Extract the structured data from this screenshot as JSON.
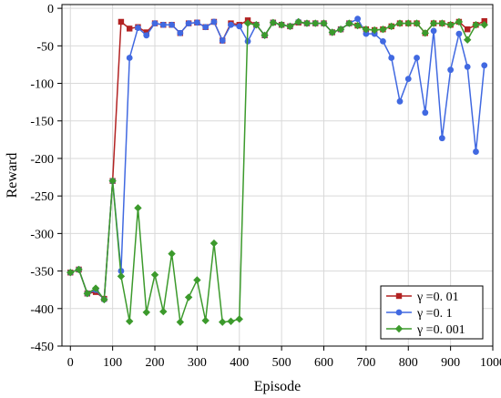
{
  "chart_data": {
    "type": "line",
    "title": "",
    "xlabel": "Episode",
    "ylabel": "Reward",
    "xlim": [
      -20,
      1000
    ],
    "ylim": [
      -450,
      5
    ],
    "xticks": [
      0,
      100,
      200,
      300,
      400,
      500,
      600,
      700,
      800,
      900,
      1000
    ],
    "yticks": [
      0,
      -50,
      -100,
      -150,
      -200,
      -250,
      -300,
      -350,
      -400,
      -450
    ],
    "grid": true,
    "legend_position": "bottom-right",
    "series": [
      {
        "name": "γ =0. 01",
        "color": "#b22222",
        "marker": "square",
        "x": [
          0,
          20,
          40,
          60,
          80,
          100,
          120,
          140,
          160,
          180,
          200,
          220,
          240,
          260,
          280,
          300,
          320,
          340,
          360,
          380,
          400,
          420,
          440,
          460,
          480,
          500,
          520,
          540,
          560,
          580,
          600,
          620,
          640,
          660,
          680,
          700,
          720,
          740,
          760,
          780,
          800,
          820,
          840,
          860,
          880,
          900,
          920,
          940,
          960,
          980
        ],
        "y": [
          -352,
          -348,
          -380,
          -378,
          -387,
          -230,
          -18,
          -27,
          -25,
          -32,
          -20,
          -22,
          -22,
          -33,
          -20,
          -19,
          -25,
          -18,
          -43,
          -20,
          -22,
          -16,
          -22,
          -36,
          -19,
          -22,
          -24,
          -19,
          -20,
          -20,
          -20,
          -32,
          -28,
          -20,
          -23,
          -28,
          -29,
          -28,
          -24,
          -20,
          -20,
          -20,
          -33,
          -20,
          -20,
          -22,
          -18,
          -28,
          -22,
          -17
        ]
      },
      {
        "name": "γ =0. 1",
        "color": "#4169e1",
        "marker": "circle",
        "x": [
          0,
          20,
          40,
          60,
          80,
          100,
          120,
          140,
          160,
          180,
          200,
          220,
          240,
          260,
          280,
          300,
          320,
          340,
          360,
          380,
          400,
          420,
          440,
          460,
          480,
          500,
          520,
          540,
          560,
          580,
          600,
          620,
          640,
          660,
          680,
          700,
          720,
          740,
          760,
          780,
          800,
          820,
          840,
          860,
          880,
          900,
          920,
          940,
          960,
          980
        ],
        "y": [
          -352,
          -348,
          -380,
          -375,
          -388,
          -230,
          -350,
          -66,
          -26,
          -36,
          -20,
          -22,
          -22,
          -33,
          -20,
          -19,
          -25,
          -18,
          -43,
          -22,
          -24,
          -44,
          -22,
          -36,
          -19,
          -22,
          -24,
          -18,
          -20,
          -20,
          -20,
          -32,
          -28,
          -20,
          -14,
          -34,
          -34,
          -44,
          -66,
          -124,
          -94,
          -66,
          -139,
          -30,
          -173,
          -82,
          -34,
          -78,
          -191,
          -76
        ]
      },
      {
        "name": "γ =0. 001",
        "color": "#3c9a2c",
        "marker": "diamond",
        "x": [
          0,
          20,
          40,
          60,
          80,
          100,
          120,
          140,
          160,
          180,
          200,
          220,
          240,
          260,
          280,
          300,
          320,
          340,
          360,
          380,
          400,
          420,
          440,
          460,
          480,
          500,
          520,
          540,
          560,
          580,
          600,
          620,
          640,
          660,
          680,
          700,
          720,
          740,
          760,
          780,
          800,
          820,
          840,
          860,
          880,
          900,
          920,
          940,
          960,
          980
        ],
        "y": [
          -352,
          -348,
          -380,
          -373,
          -388,
          -230,
          -357,
          -417,
          -266,
          -405,
          -355,
          -404,
          -327,
          -418,
          -385,
          -362,
          -416,
          -313,
          -418,
          -417,
          -414,
          -20,
          -22,
          -36,
          -19,
          -22,
          -24,
          -18,
          -20,
          -20,
          -20,
          -32,
          -28,
          -20,
          -23,
          -28,
          -29,
          -28,
          -24,
          -20,
          -20,
          -20,
          -33,
          -20,
          -20,
          -22,
          -18,
          -42,
          -22,
          -22
        ]
      }
    ]
  }
}
